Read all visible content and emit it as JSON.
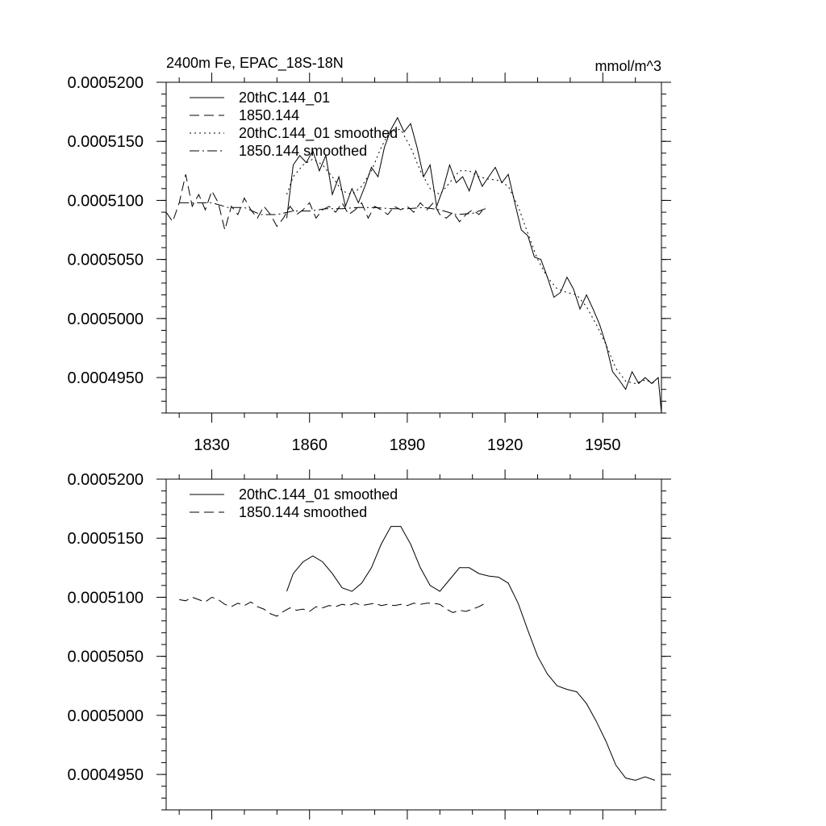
{
  "chart_data": [
    {
      "type": "line",
      "title": "2400m Fe, EPAC_18S-18N",
      "units": "mmol/m^3",
      "xlim": [
        1816,
        1968
      ],
      "ylim": [
        0.000492,
        0.00052
      ],
      "xticks": [
        1830,
        1860,
        1890,
        1920,
        1950
      ],
      "yticks": [
        0.000495,
        0.0005,
        0.000505,
        0.00051,
        0.000515,
        0.00052
      ],
      "ytick_labels": [
        "0.0004950",
        "0.0005000",
        "0.0005050",
        "0.0005100",
        "0.0005150",
        "0.0005200"
      ],
      "xtick_labels": [
        "1830",
        "1860",
        "1890",
        "1920",
        "1950"
      ],
      "legend_position": "top-left",
      "series": [
        {
          "name": "20thC.144_01",
          "style": "solid",
          "x": [
            1853,
            1855,
            1857,
            1859,
            1861,
            1863,
            1865,
            1867,
            1869,
            1871,
            1873,
            1875,
            1877,
            1879,
            1881,
            1883,
            1885,
            1887,
            1889,
            1891,
            1893,
            1895,
            1897,
            1899,
            1901,
            1903,
            1905,
            1907,
            1909,
            1911,
            1913,
            1915,
            1917,
            1919,
            1921,
            1923,
            1925,
            1927,
            1929,
            1931,
            1933,
            1935,
            1937,
            1939,
            1941,
            1943,
            1945,
            1947,
            1949,
            1951,
            1953,
            1955,
            1957,
            1959,
            1961,
            1963,
            1965,
            1967,
            1968
          ],
          "values": [
            0.0005085,
            0.000513,
            0.0005138,
            0.0005132,
            0.0005142,
            0.0005125,
            0.0005138,
            0.0005105,
            0.000512,
            0.0005095,
            0.000511,
            0.0005098,
            0.0005112,
            0.0005128,
            0.000512,
            0.0005145,
            0.000516,
            0.000517,
            0.0005158,
            0.0005165,
            0.0005145,
            0.000512,
            0.000513,
            0.0005095,
            0.000511,
            0.000513,
            0.0005115,
            0.000512,
            0.0005108,
            0.0005125,
            0.0005112,
            0.000512,
            0.0005128,
            0.0005115,
            0.0005122,
            0.0005098,
            0.0005075,
            0.000507,
            0.0005052,
            0.000505,
            0.0005035,
            0.0005018,
            0.0005022,
            0.0005035,
            0.0005025,
            0.0005008,
            0.000502,
            0.0005008,
            0.0004995,
            0.0004978,
            0.0004955,
            0.0004948,
            0.000494,
            0.0004955,
            0.0004945,
            0.000495,
            0.0004945,
            0.000495,
            0.000492
          ]
        },
        {
          "name": "1850.144",
          "style": "dashed",
          "x": [
            1816,
            1818,
            1820,
            1822,
            1824,
            1826,
            1828,
            1830,
            1832,
            1834,
            1836,
            1838,
            1840,
            1842,
            1844,
            1846,
            1848,
            1850,
            1852,
            1854,
            1856,
            1858,
            1860,
            1862,
            1864,
            1866,
            1868,
            1870,
            1872,
            1874,
            1876,
            1878,
            1880,
            1882,
            1884,
            1886,
            1888,
            1890,
            1892,
            1894,
            1896,
            1898,
            1900,
            1902,
            1904,
            1906,
            1908,
            1910,
            1912,
            1914
          ],
          "values": [
            0.000509,
            0.0005082,
            0.0005098,
            0.0005122,
            0.0005095,
            0.0005105,
            0.0005092,
            0.0005108,
            0.0005098,
            0.0005075,
            0.0005095,
            0.0005088,
            0.0005102,
            0.0005092,
            0.0005085,
            0.0005095,
            0.0005088,
            0.0005078,
            0.0005085,
            0.0005095,
            0.0005088,
            0.0005092,
            0.0005098,
            0.0005085,
            0.0005092,
            0.0005095,
            0.000509,
            0.0005098,
            0.0005088,
            0.0005092,
            0.0005098,
            0.0005085,
            0.0005095,
            0.0005092,
            0.0005088,
            0.0005095,
            0.0005092,
            0.0005095,
            0.000509,
            0.0005098,
            0.0005092,
            0.0005098,
            0.0005088,
            0.0005085,
            0.000509,
            0.0005082,
            0.0005088,
            0.0005092,
            0.0005088,
            0.0005095
          ]
        },
        {
          "name": "20thC.144_01 smoothed",
          "style": "dotted",
          "x": [
            1853,
            1855,
            1858,
            1861,
            1864,
            1867,
            1870,
            1873,
            1876,
            1879,
            1882,
            1885,
            1888,
            1891,
            1894,
            1897,
            1900,
            1903,
            1906,
            1909,
            1912,
            1915,
            1918,
            1921,
            1924,
            1927,
            1930,
            1933,
            1936,
            1939,
            1942,
            1945,
            1948,
            1951,
            1954,
            1957,
            1960,
            1963,
            1966
          ],
          "values": [
            0.0005105,
            0.000512,
            0.000513,
            0.0005135,
            0.000513,
            0.000512,
            0.0005108,
            0.0005105,
            0.0005112,
            0.0005125,
            0.0005145,
            0.000516,
            0.000516,
            0.0005145,
            0.0005125,
            0.000511,
            0.0005105,
            0.0005115,
            0.0005125,
            0.0005125,
            0.000512,
            0.0005118,
            0.0005117,
            0.0005112,
            0.0005095,
            0.0005072,
            0.000505,
            0.0005035,
            0.0005025,
            0.0005022,
            0.000502,
            0.000501,
            0.0004995,
            0.0004978,
            0.0004958,
            0.0004947,
            0.0004945,
            0.0004948,
            0.0004945
          ]
        },
        {
          "name": "1850.144 smoothed",
          "style": "dashdot",
          "x": [
            1820,
            1825,
            1830,
            1835,
            1840,
            1845,
            1850,
            1855,
            1860,
            1865,
            1870,
            1875,
            1880,
            1885,
            1890,
            1895,
            1900,
            1905,
            1910,
            1914
          ],
          "values": [
            0.0005098,
            0.0005098,
            0.0005098,
            0.0005094,
            0.0005094,
            0.0005088,
            0.0005088,
            0.0005091,
            0.0005091,
            0.0005093,
            0.0005093,
            0.0005094,
            0.0005094,
            0.0005093,
            0.0005093,
            0.0005094,
            0.0005092,
            0.0005088,
            0.0005089,
            0.0005093
          ]
        }
      ]
    },
    {
      "type": "line",
      "title": "",
      "units": "",
      "xlim": [
        1816,
        1968
      ],
      "ylim": [
        0.000492,
        0.00052
      ],
      "xticks": [
        1830,
        1860,
        1890,
        1920,
        1950
      ],
      "yticks": [
        0.000495,
        0.0005,
        0.000505,
        0.00051,
        0.000515,
        0.00052
      ],
      "ytick_labels": [
        "0.0004950",
        "0.0005000",
        "0.0005050",
        "0.0005100",
        "0.0005150",
        "0.0005200"
      ],
      "legend_position": "top-left",
      "series": [
        {
          "name": "20thC.144_01 smoothed",
          "style": "solid",
          "x": [
            1853,
            1855,
            1858,
            1861,
            1864,
            1867,
            1870,
            1873,
            1876,
            1879,
            1882,
            1885,
            1888,
            1891,
            1894,
            1897,
            1900,
            1903,
            1906,
            1909,
            1912,
            1915,
            1918,
            1921,
            1924,
            1927,
            1930,
            1933,
            1936,
            1939,
            1942,
            1945,
            1948,
            1951,
            1954,
            1957,
            1960,
            1963,
            1966
          ],
          "values": [
            0.0005105,
            0.000512,
            0.000513,
            0.0005135,
            0.000513,
            0.000512,
            0.0005108,
            0.0005105,
            0.0005112,
            0.0005125,
            0.0005145,
            0.000516,
            0.000516,
            0.0005145,
            0.0005125,
            0.000511,
            0.0005105,
            0.0005115,
            0.0005125,
            0.0005125,
            0.000512,
            0.0005118,
            0.0005117,
            0.0005112,
            0.0005095,
            0.0005072,
            0.000505,
            0.0005035,
            0.0005025,
            0.0005022,
            0.000502,
            0.000501,
            0.0004995,
            0.0004978,
            0.0004958,
            0.0004947,
            0.0004945,
            0.0004948,
            0.0004945
          ]
        },
        {
          "name": "1850.144 smoothed",
          "style": "dashed",
          "x": [
            1820,
            1822,
            1824,
            1826,
            1828,
            1830,
            1832,
            1834,
            1836,
            1838,
            1840,
            1842,
            1844,
            1846,
            1848,
            1850,
            1852,
            1854,
            1856,
            1858,
            1860,
            1862,
            1864,
            1866,
            1868,
            1870,
            1872,
            1874,
            1876,
            1878,
            1880,
            1882,
            1884,
            1886,
            1888,
            1890,
            1892,
            1894,
            1896,
            1898,
            1900,
            1902,
            1904,
            1906,
            1908,
            1910,
            1912,
            1914
          ],
          "values": [
            0.0005098,
            0.0005097,
            0.00051,
            0.0005098,
            0.0005096,
            0.00051,
            0.0005098,
            0.0005094,
            0.0005092,
            0.0005095,
            0.0005093,
            0.0005096,
            0.0005092,
            0.000509,
            0.0005086,
            0.0005084,
            0.0005088,
            0.0005091,
            0.0005089,
            0.000509,
            0.0005088,
            0.0005092,
            0.0005091,
            0.0005093,
            0.0005092,
            0.0005094,
            0.0005093,
            0.0005095,
            0.0005093,
            0.0005094,
            0.0005095,
            0.0005093,
            0.0005094,
            0.0005093,
            0.0005094,
            0.0005093,
            0.0005095,
            0.0005094,
            0.0005095,
            0.0005095,
            0.0005094,
            0.000509,
            0.0005087,
            0.0005089,
            0.0005088,
            0.000509,
            0.0005092,
            0.0005095
          ]
        }
      ]
    }
  ]
}
